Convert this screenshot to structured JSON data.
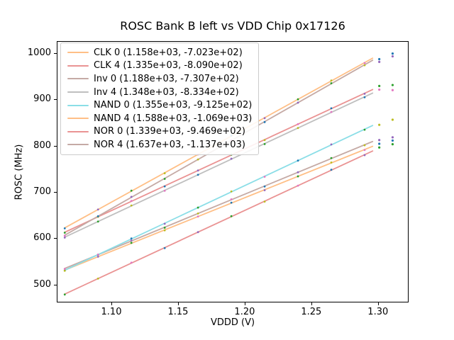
{
  "chart_data": {
    "type": "scatter",
    "title": "ROSC Bank B left vs VDD Chip 0x17126",
    "xlabel": "VDDD (V)",
    "ylabel": "ROSC (MHz)",
    "xlim": [
      1.059,
      1.323
    ],
    "ylim": [
      461,
      1026
    ],
    "x_tick_labels": [
      "1.10",
      "1.15",
      "1.20",
      "1.25",
      "1.30"
    ],
    "x_tick_values": [
      1.1,
      1.15,
      1.2,
      1.25,
      1.3
    ],
    "y_tick_labels": [
      "500",
      "600",
      "700",
      "800",
      "900",
      "1000"
    ],
    "y_tick_values": [
      500,
      600,
      700,
      800,
      900,
      1000
    ],
    "grid": false,
    "legend_position": "upper left",
    "x_points": [
      1.065,
      1.09,
      1.115,
      1.14,
      1.165,
      1.19,
      1.215,
      1.24,
      1.265,
      1.29
    ],
    "fit_x_range": [
      1.065,
      1.296
    ],
    "point_color_palette": [
      "#1f77b4",
      "#9467bd",
      "#2ca02c",
      "#bcbd22",
      "#e377c2"
    ],
    "series": [
      {
        "name": "CLK 0",
        "legend_label": "CLK 0 (1.158e+03, -7.023e+02)",
        "fit_slope_mhz_per_v": 1158,
        "fit_intercept_mhz": -702.3,
        "line_color": "#ffbf86",
        "palette_offset": 0,
        "outliers": [
          {
            "x": 1.301,
            "y": 804,
            "color": "#1f77b4"
          },
          {
            "x": 1.311,
            "y": 811,
            "color": "#1f77b4"
          }
        ]
      },
      {
        "name": "CLK 4",
        "legend_label": "CLK 4 (1.335e+03, -8.090e+02)",
        "fit_slope_mhz_per_v": 1335,
        "fit_intercept_mhz": -809.0,
        "line_color": "#ea9393",
        "palette_offset": 2,
        "outliers": [
          {
            "x": 1.301,
            "y": 929,
            "color": "#2ca02c"
          },
          {
            "x": 1.311,
            "y": 931,
            "color": "#2ca02c"
          }
        ]
      },
      {
        "name": "Inv 0",
        "legend_label": "Inv 0 (1.188e+03, -7.307e+02)",
        "fit_slope_mhz_per_v": 1188,
        "fit_intercept_mhz": -730.7,
        "line_color": "#c5aaa5",
        "palette_offset": 4,
        "outliers": [
          {
            "x": 1.301,
            "y": 812,
            "color": "#9467bd"
          },
          {
            "x": 1.311,
            "y": 818,
            "color": "#9467bd"
          }
        ]
      },
      {
        "name": "Inv 4",
        "legend_label": "Inv 4 (1.348e+03, -8.334e+02)",
        "fit_slope_mhz_per_v": 1348,
        "fit_intercept_mhz": -833.4,
        "line_color": "#bfbfbf",
        "palette_offset": 1,
        "outliers": [
          {
            "x": 1.301,
            "y": 921,
            "color": "#e377c2"
          },
          {
            "x": 1.311,
            "y": 920,
            "color": "#e377c2"
          }
        ]
      },
      {
        "name": "NAND 0",
        "legend_label": "NAND 0 (1.355e+03, -9.125e+02)",
        "fit_slope_mhz_per_v": 1355,
        "fit_intercept_mhz": -912.5,
        "line_color": "#8bdee7",
        "palette_offset": 3,
        "outliers": [
          {
            "x": 1.301,
            "y": 845,
            "color": "#bcbd22"
          },
          {
            "x": 1.311,
            "y": 856,
            "color": "#bcbd22"
          }
        ]
      },
      {
        "name": "NAND 4",
        "legend_label": "NAND 4 (1.588e+03, -1.069e+03)",
        "fit_slope_mhz_per_v": 1588,
        "fit_intercept_mhz": -1069,
        "line_color": "#ffbf86",
        "palette_offset": 0,
        "outliers": [
          {
            "x": 1.301,
            "y": 987,
            "color": "#1f77b4"
          },
          {
            "x": 1.311,
            "y": 999,
            "color": "#1f77b4"
          }
        ]
      },
      {
        "name": "NOR 0",
        "legend_label": "NOR 0 (1.339e+03, -9.469e+02)",
        "fit_slope_mhz_per_v": 1339,
        "fit_intercept_mhz": -946.9,
        "line_color": "#ea9393",
        "palette_offset": 2,
        "outliers": [
          {
            "x": 1.301,
            "y": 796,
            "color": "#2ca02c"
          },
          {
            "x": 1.311,
            "y": 803,
            "color": "#2ca02c"
          }
        ]
      },
      {
        "name": "NOR 4",
        "legend_label": "NOR 4 (1.637e+03, -1.137e+03)",
        "fit_slope_mhz_per_v": 1637,
        "fit_intercept_mhz": -1137,
        "line_color": "#c5aaa5",
        "palette_offset": 4,
        "outliers": [
          {
            "x": 1.301,
            "y": 981,
            "color": "#9467bd"
          },
          {
            "x": 1.311,
            "y": 993,
            "color": "#9467bd"
          }
        ]
      }
    ]
  }
}
